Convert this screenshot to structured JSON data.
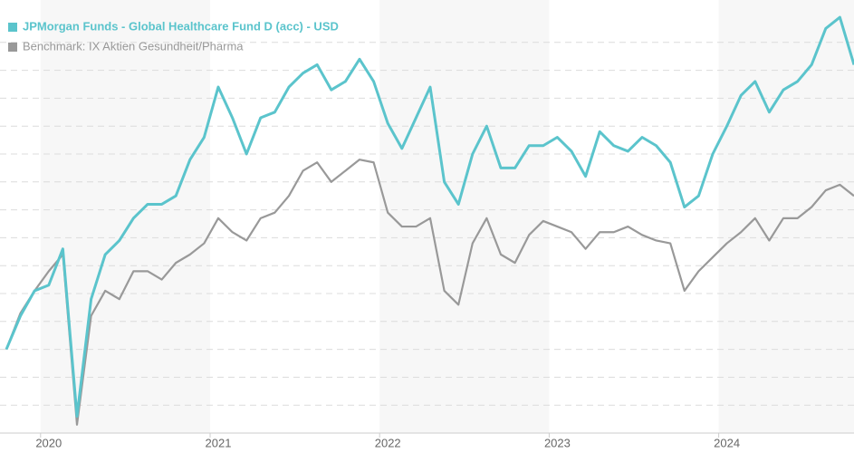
{
  "chart_data": {
    "type": "line",
    "categories": [
      null,
      null,
      null,
      "2020",
      null,
      null,
      null,
      null,
      null,
      null,
      null,
      null,
      null,
      null,
      null,
      "2021",
      null,
      null,
      null,
      null,
      null,
      null,
      null,
      null,
      null,
      null,
      null,
      "2022",
      null,
      null,
      null,
      null,
      null,
      null,
      null,
      null,
      null,
      null,
      null,
      "2023",
      null,
      null,
      null,
      null,
      null,
      null,
      null,
      null,
      null,
      null,
      null,
      "2024",
      null,
      null,
      null,
      null,
      null,
      null,
      null,
      null,
      null
    ],
    "series": [
      {
        "name": "JPMorgan Funds - Global Healthcare Fund D (acc) - USD",
        "color": "#5bc4cc",
        "values": [
          3.0,
          4.2,
          5.1,
          5.3,
          6.6,
          0.6,
          4.8,
          6.4,
          6.9,
          7.7,
          8.2,
          8.2,
          8.5,
          9.8,
          10.6,
          12.4,
          11.3,
          10.0,
          11.3,
          11.5,
          12.4,
          12.9,
          13.2,
          12.3,
          12.6,
          13.4,
          12.6,
          11.1,
          10.2,
          11.3,
          12.4,
          9.0,
          8.2,
          10.0,
          11.0,
          9.5,
          9.5,
          10.3,
          10.3,
          10.6,
          10.1,
          9.2,
          10.8,
          10.3,
          10.1,
          10.6,
          10.3,
          9.7,
          8.1,
          8.5,
          10.0,
          11.0,
          12.1,
          12.6,
          11.5,
          12.3,
          12.6,
          13.2,
          14.5,
          14.9,
          13.2
        ]
      },
      {
        "name": "Benchmark: IX Aktien Gesundheit/Pharma",
        "color": "#999999",
        "values": [
          3.0,
          4.3,
          5.1,
          5.8,
          6.4,
          0.3,
          4.2,
          5.1,
          4.8,
          5.8,
          5.8,
          5.5,
          6.1,
          6.4,
          6.8,
          7.7,
          7.2,
          6.9,
          7.7,
          7.9,
          8.5,
          9.4,
          9.7,
          9.0,
          9.4,
          9.8,
          9.7,
          7.9,
          7.4,
          7.4,
          7.7,
          5.1,
          4.6,
          6.8,
          7.7,
          6.4,
          6.1,
          7.1,
          7.6,
          7.4,
          7.2,
          6.6,
          7.2,
          7.2,
          7.4,
          7.1,
          6.9,
          6.8,
          5.1,
          5.8,
          6.3,
          6.8,
          7.2,
          7.7,
          6.9,
          7.7,
          7.7,
          8.1,
          8.7,
          8.9,
          8.5
        ]
      }
    ],
    "ylim": [
      0,
      15
    ],
    "yticks": [
      1,
      2,
      3,
      4,
      5,
      6,
      7,
      8,
      9,
      10,
      11,
      12,
      13,
      14
    ],
    "grid": true,
    "legend": "top-left"
  }
}
